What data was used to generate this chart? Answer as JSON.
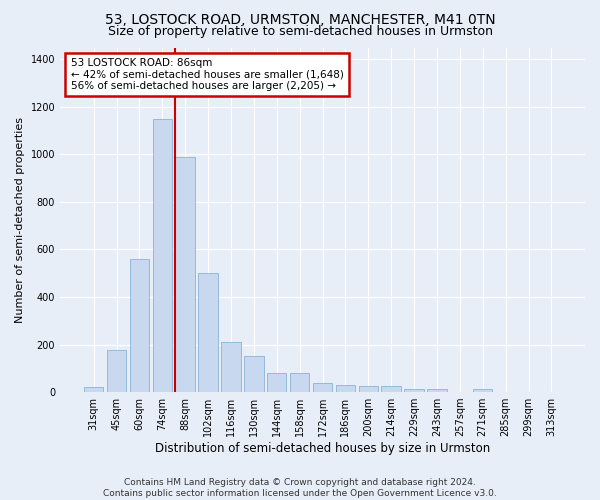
{
  "title": "53, LOSTOCK ROAD, URMSTON, MANCHESTER, M41 0TN",
  "subtitle": "Size of property relative to semi-detached houses in Urmston",
  "xlabel": "Distribution of semi-detached houses by size in Urmston",
  "ylabel": "Number of semi-detached properties",
  "footer_line1": "Contains HM Land Registry data © Crown copyright and database right 2024.",
  "footer_line2": "Contains public sector information licensed under the Open Government Licence v3.0.",
  "categories": [
    "31sqm",
    "45sqm",
    "60sqm",
    "74sqm",
    "88sqm",
    "102sqm",
    "116sqm",
    "130sqm",
    "144sqm",
    "158sqm",
    "172sqm",
    "186sqm",
    "200sqm",
    "214sqm",
    "229sqm",
    "243sqm",
    "257sqm",
    "271sqm",
    "285sqm",
    "299sqm",
    "313sqm"
  ],
  "values": [
    20,
    175,
    560,
    1150,
    990,
    500,
    210,
    150,
    80,
    80,
    40,
    30,
    25,
    25,
    15,
    12,
    0,
    15,
    0,
    0,
    0
  ],
  "bar_color": "#c8d8ee",
  "bar_edge_color": "#7aaad0",
  "highlight_index": 4,
  "highlight_line_color": "#cc0000",
  "annotation_line1": "53 LOSTOCK ROAD: 86sqm",
  "annotation_line2": "← 42% of semi-detached houses are smaller (1,648)",
  "annotation_line3": "56% of semi-detached houses are larger (2,205) →",
  "annotation_box_color": "#ffffff",
  "annotation_box_edge": "#cc0000",
  "ylim": [
    0,
    1450
  ],
  "yticks": [
    0,
    200,
    400,
    600,
    800,
    1000,
    1200,
    1400
  ],
  "bg_color": "#e8eef8",
  "plot_bg_color": "#e8eef8",
  "grid_color": "#ffffff",
  "title_fontsize": 10,
  "subtitle_fontsize": 9,
  "tick_fontsize": 7,
  "ylabel_fontsize": 8,
  "xlabel_fontsize": 8.5,
  "footer_fontsize": 6.5
}
